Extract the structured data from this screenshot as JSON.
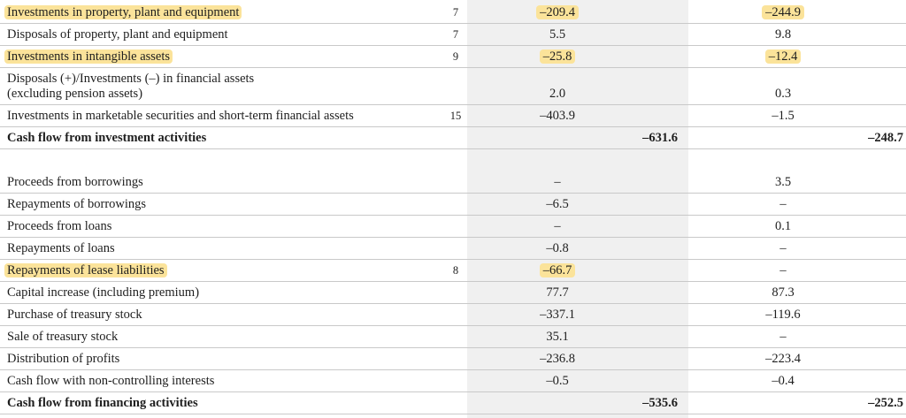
{
  "rows": [
    {
      "label": "Investments in property, plant and equipment",
      "note": "7",
      "v1": "–209.4",
      "t1": "",
      "v2": "–244.9",
      "t2": ""
    },
    {
      "label": "Disposals of property, plant and equipment",
      "note": "7",
      "v1": "5.5",
      "t1": "",
      "v2": "9.8",
      "t2": ""
    },
    {
      "label": "Investments in intangible assets",
      "note": "9",
      "v1": "–25.8",
      "t1": "",
      "v2": "–12.4",
      "t2": ""
    },
    {
      "label": "Disposals (+)/Investments (–) in financial assets",
      "label2": "(excluding pension assets)",
      "note": "",
      "v1": "2.0",
      "t1": "",
      "v2": "0.3",
      "t2": ""
    },
    {
      "label": "Investments in marketable securities and short-term financial assets",
      "note": "15",
      "v1": "–403.9",
      "t1": "",
      "v2": "–1.5",
      "t2": ""
    },
    {
      "label": "Cash flow from investment activities",
      "note": "",
      "v1": "",
      "t1": "–631.6",
      "v2": "",
      "t2": "–248.7"
    },
    {
      "label": "Proceeds from borrowings",
      "note": "",
      "v1": "–",
      "t1": "",
      "v2": "3.5",
      "t2": ""
    },
    {
      "label": "Repayments of borrowings",
      "note": "",
      "v1": "–6.5",
      "t1": "",
      "v2": "–",
      "t2": ""
    },
    {
      "label": "Proceeds from loans",
      "note": "",
      "v1": "–",
      "t1": "",
      "v2": "0.1",
      "t2": ""
    },
    {
      "label": "Repayments of loans",
      "note": "",
      "v1": "–0.8",
      "t1": "",
      "v2": "–",
      "t2": ""
    },
    {
      "label": "Repayments of lease liabilities",
      "note": "8",
      "v1": "–66.7",
      "t1": "",
      "v2": "–",
      "t2": ""
    },
    {
      "label": "Capital increase (including premium)",
      "note": "",
      "v1": "77.7",
      "t1": "",
      "v2": "87.3",
      "t2": ""
    },
    {
      "label": "Purchase of treasury stock",
      "note": "",
      "v1": "–337.1",
      "t1": "",
      "v2": "–119.6",
      "t2": ""
    },
    {
      "label": "Sale of treasury stock",
      "note": "",
      "v1": "35.1",
      "t1": "",
      "v2": "–",
      "t2": ""
    },
    {
      "label": "Distribution of profits",
      "note": "",
      "v1": "–236.8",
      "t1": "",
      "v2": "–223.4",
      "t2": ""
    },
    {
      "label": "Cash flow with non-controlling interests",
      "note": "",
      "v1": "–0.5",
      "t1": "",
      "v2": "–0.4",
      "t2": ""
    },
    {
      "label": "Cash flow from financing activities",
      "note": "",
      "v1": "",
      "t1": "–535.6",
      "v2": "",
      "t2": "–252.5"
    }
  ],
  "colors": {
    "highlight": "#fbe39a",
    "column_shade": "#f0f0f0",
    "rule": "#c9c9c9"
  }
}
